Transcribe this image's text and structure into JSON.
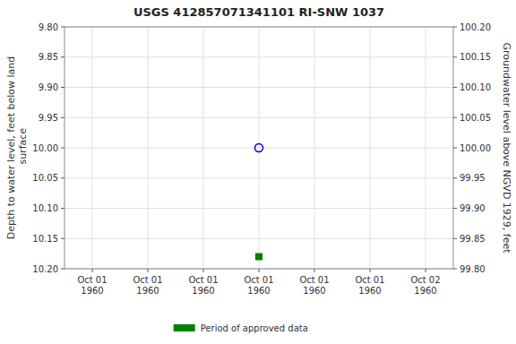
{
  "chart_data": {
    "type": "scatter",
    "title": "USGS 412857071341101 RI-SNW 1037",
    "ylabel": "Depth to water level, feet below land\n surface",
    "y2label": "Groundwater level above NGVD 1929, feet",
    "categories": [
      "Oct 01\n1960",
      "Oct 01\n1960",
      "Oct 01\n1960",
      "Oct 01\n1960",
      "Oct 01\n1960",
      "Oct 01\n1960",
      "Oct 02\n1960"
    ],
    "series": [
      {
        "color": "#0000cc",
        "marker": "open-circle",
        "values": [
          null,
          null,
          null,
          10.0,
          null,
          null,
          null
        ]
      },
      {
        "name": "Period of approved data",
        "color": "#008000",
        "marker": "square",
        "values": [
          null,
          null,
          null,
          10.18,
          null,
          null,
          null
        ]
      }
    ],
    "ylim": [
      10.2,
      9.8
    ],
    "yticks": [
      {
        "value": 9.8,
        "label": "9.80"
      },
      {
        "value": 9.85,
        "label": "9.85"
      },
      {
        "value": 9.9,
        "label": "9.90"
      },
      {
        "value": 9.95,
        "label": "9.95"
      },
      {
        "value": 10.0,
        "label": "10.00"
      },
      {
        "value": 10.05,
        "label": "10.05"
      },
      {
        "value": 10.1,
        "label": "10.10"
      },
      {
        "value": 10.15,
        "label": "10.15"
      },
      {
        "value": 10.2,
        "label": "10.20"
      }
    ],
    "y2lim": [
      99.8,
      100.2
    ],
    "y2ticks": [
      {
        "value": 100.2,
        "label": "100.20"
      },
      {
        "value": 100.15,
        "label": "100.15"
      },
      {
        "value": 100.1,
        "label": "100.10"
      },
      {
        "value": 100.05,
        "label": "100.05"
      },
      {
        "value": 100.0,
        "label": "100.00"
      },
      {
        "value": 99.95,
        "label": "99.95"
      },
      {
        "value": 99.9,
        "label": "99.90"
      },
      {
        "value": 99.85,
        "label": "99.85"
      },
      {
        "value": 99.8,
        "label": "99.80"
      }
    ],
    "grid": true,
    "legend": "bottom"
  }
}
